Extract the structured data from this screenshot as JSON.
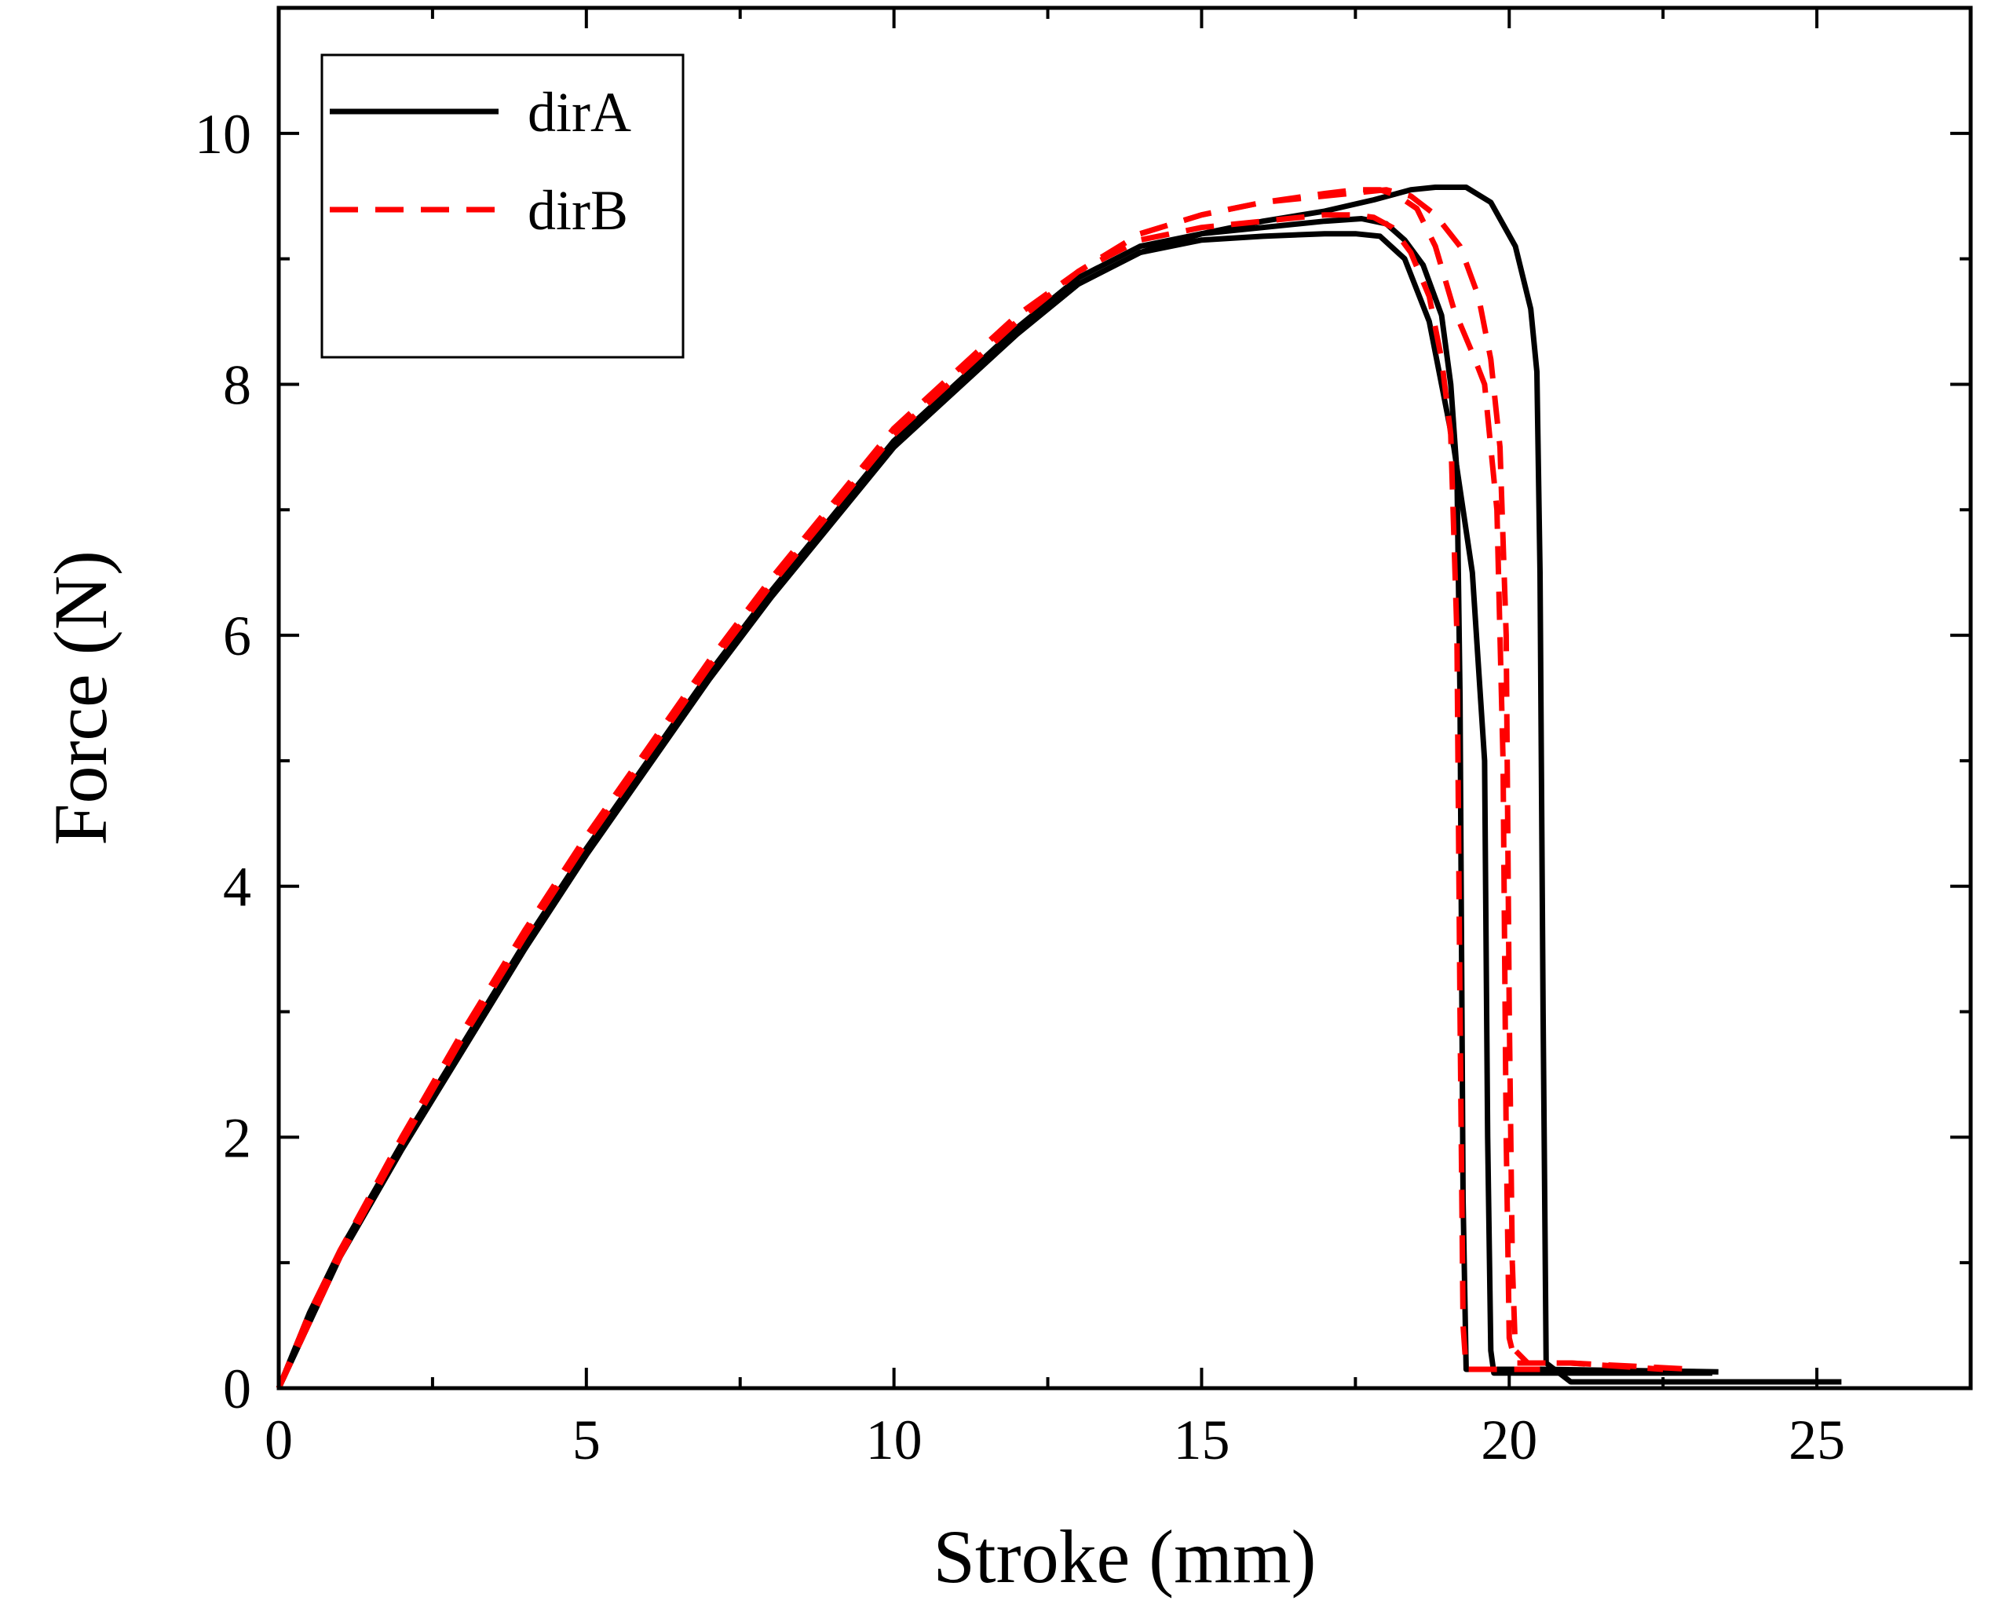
{
  "chart_data": {
    "type": "line",
    "title": "",
    "xlabel": "Stroke (mm)",
    "ylabel": "Force (N)",
    "xlim": [
      0,
      27.5
    ],
    "ylim": [
      0,
      11
    ],
    "xticks": [
      0,
      5,
      10,
      15,
      20,
      25
    ],
    "yticks": [
      0,
      2,
      4,
      6,
      8,
      10
    ],
    "grid": false,
    "legend": {
      "position": "top-left",
      "entries": [
        {
          "label": "dirA",
          "color": "#000000",
          "style": "solid"
        },
        {
          "label": "dirB",
          "color": "#ff0000",
          "style": "dashed"
        }
      ]
    },
    "series": [
      {
        "group": "dirA",
        "color": "#000000",
        "style": "solid",
        "x": [
          0,
          0.5,
          1,
          2,
          3,
          4,
          5,
          6,
          7,
          8,
          9,
          10,
          11,
          12,
          13,
          14,
          15,
          16,
          17,
          17.6,
          18.0,
          18.3,
          18.6,
          18.9,
          19.05,
          19.15,
          19.2,
          19.25,
          19.3,
          20.5,
          23.4
        ],
        "y": [
          0,
          0.6,
          1.1,
          1.95,
          2.75,
          3.55,
          4.3,
          5.0,
          5.7,
          6.35,
          6.95,
          7.55,
          8.0,
          8.45,
          8.85,
          9.1,
          9.2,
          9.25,
          9.3,
          9.32,
          9.28,
          9.15,
          8.95,
          8.55,
          8.0,
          7.3,
          5.5,
          1.5,
          0.15,
          0.15,
          0.13
        ]
      },
      {
        "group": "dirA",
        "color": "#000000",
        "style": "solid",
        "x": [
          0,
          1,
          2,
          3,
          4,
          5,
          6,
          7,
          8,
          9,
          10,
          11,
          12,
          13,
          14,
          15,
          16,
          17,
          17.5,
          17.9,
          18.3,
          18.7,
          19.1,
          19.4,
          19.6,
          19.65,
          19.7,
          19.75,
          21.0,
          23.3
        ],
        "y": [
          0,
          1.05,
          1.9,
          2.7,
          3.5,
          4.25,
          4.95,
          5.65,
          6.3,
          6.9,
          7.5,
          7.95,
          8.4,
          8.8,
          9.05,
          9.15,
          9.18,
          9.2,
          9.2,
          9.18,
          9.0,
          8.5,
          7.5,
          6.5,
          5.0,
          2.0,
          0.3,
          0.12,
          0.12,
          0.12
        ]
      },
      {
        "group": "dirA",
        "color": "#000000",
        "style": "solid",
        "x": [
          0,
          1,
          2,
          3,
          4,
          5,
          6,
          7,
          8,
          9,
          10,
          11,
          12,
          13,
          14,
          15,
          16,
          17,
          17.8,
          18.4,
          18.8,
          19.3,
          19.7,
          20.1,
          20.35,
          20.45,
          20.5,
          20.55,
          20.6,
          21.0,
          23.0,
          25.4
        ],
        "y": [
          0,
          1.05,
          1.9,
          2.7,
          3.5,
          4.25,
          4.95,
          5.65,
          6.3,
          6.9,
          7.5,
          7.95,
          8.4,
          8.8,
          9.05,
          9.2,
          9.3,
          9.38,
          9.47,
          9.55,
          9.57,
          9.57,
          9.45,
          9.1,
          8.6,
          8.1,
          6.5,
          3.0,
          0.2,
          0.05,
          0.05,
          0.05
        ]
      },
      {
        "group": "dirB",
        "color": "#ff0000",
        "style": "dashed",
        "x": [
          0,
          0.5,
          1,
          2,
          3,
          4,
          5,
          6,
          7,
          8,
          9,
          10,
          11,
          12,
          13,
          14,
          15,
          16,
          17,
          17.5,
          17.8,
          18.1,
          18.4,
          18.7,
          18.9,
          19.05,
          19.15,
          19.2,
          19.25,
          19.3,
          20.5
        ],
        "y": [
          0,
          0.6,
          1.1,
          2.0,
          2.85,
          3.65,
          4.4,
          5.1,
          5.8,
          6.45,
          7.05,
          7.65,
          8.1,
          8.55,
          8.9,
          9.15,
          9.25,
          9.3,
          9.35,
          9.35,
          9.33,
          9.25,
          9.05,
          8.7,
          8.2,
          7.6,
          6.0,
          3.0,
          0.5,
          0.15,
          0.15
        ]
      },
      {
        "group": "dirB",
        "color": "#ff0000",
        "style": "dashed",
        "x": [
          0,
          1,
          2,
          3,
          4,
          5,
          6,
          7,
          8,
          9,
          10,
          11,
          12,
          13,
          14,
          15,
          16,
          17,
          17.5,
          17.9,
          18.2,
          18.5,
          18.8,
          19.1,
          19.4,
          19.6,
          19.8,
          19.9,
          19.95,
          20.0,
          20.1,
          21.0,
          23.0
        ],
        "y": [
          0,
          1.05,
          1.95,
          2.8,
          3.6,
          4.35,
          5.05,
          5.75,
          6.4,
          7.0,
          7.6,
          8.05,
          8.5,
          8.9,
          9.2,
          9.35,
          9.45,
          9.52,
          9.55,
          9.55,
          9.5,
          9.4,
          9.1,
          8.6,
          8.25,
          8.0,
          7.0,
          5.0,
          2.0,
          0.4,
          0.2,
          0.2,
          0.15
        ]
      },
      {
        "group": "dirB",
        "color": "#ff0000",
        "style": "dashed",
        "x": [
          0,
          1,
          2,
          3,
          4,
          5,
          6,
          7,
          8,
          9,
          10,
          11,
          12,
          13,
          14,
          15,
          16,
          17,
          17.6,
          18.0,
          18.4,
          18.8,
          19.2,
          19.5,
          19.7,
          19.85,
          19.95,
          20.0,
          20.05,
          20.1,
          20.3,
          21.0,
          22.5
        ],
        "y": [
          0,
          1.05,
          1.95,
          2.8,
          3.6,
          4.35,
          5.05,
          5.75,
          6.4,
          7.0,
          7.6,
          8.05,
          8.5,
          8.9,
          9.2,
          9.35,
          9.45,
          9.5,
          9.53,
          9.55,
          9.5,
          9.35,
          9.1,
          8.7,
          8.2,
          7.5,
          6.0,
          3.0,
          1.0,
          0.3,
          0.2,
          0.2,
          0.15
        ]
      }
    ]
  }
}
